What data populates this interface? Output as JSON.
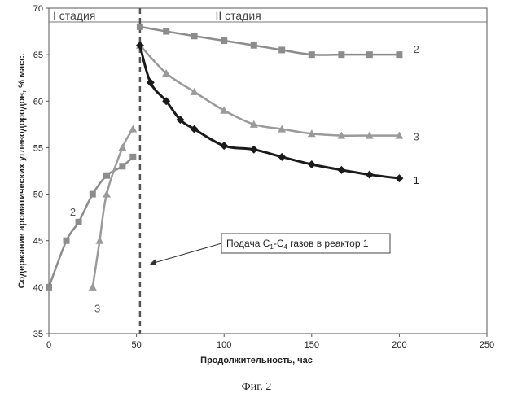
{
  "chart_data": {
    "type": "line",
    "xlabel": "Продолжительность, час",
    "ylabel": "Содержание ароматических углеводородов, % масс.",
    "xlim": [
      0,
      250
    ],
    "ylim": [
      35,
      70
    ],
    "xticks": [
      "0",
      "50",
      "100",
      "150",
      "200",
      "250"
    ],
    "yticks": [
      "35",
      "40",
      "45",
      "50",
      "55",
      "60",
      "65",
      "70"
    ],
    "grid": false,
    "stages": [
      {
        "label": "I стадия",
        "x_start": 0,
        "x_end": 52
      },
      {
        "label": "II стадия",
        "x_start": 52,
        "x_end": 250
      }
    ],
    "stage_boundary_x": 52,
    "annotation": {
      "label": "Подача C1-C4 газов в реактор 1",
      "label_main": "Подача C",
      "sub1": "1",
      "dash": "-C",
      "sub2": "4",
      "label_tail": " газов в реактор 1",
      "arrow_to_x": 58,
      "arrow_to_y": 42.5
    },
    "series": [
      {
        "name": "2",
        "marker": "square",
        "color": "#8c8c8c",
        "segments": [
          {
            "x": [
              0,
              10,
              17,
              25,
              33,
              42,
              48
            ],
            "y": [
              40,
              45,
              47,
              50,
              52,
              53,
              54
            ]
          },
          {
            "x": [
              52,
              67,
              83,
              100,
              117,
              133,
              150,
              167,
              183,
              200
            ],
            "y": [
              68,
              67.5,
              67,
              66.5,
              66,
              65.5,
              65,
              65,
              65,
              65
            ]
          }
        ]
      },
      {
        "name": "3",
        "marker": "triangle",
        "color": "#9a9a9a",
        "segments": [
          {
            "x": [
              25,
              29,
              33,
              42,
              48
            ],
            "y": [
              40,
              45,
              50,
              55,
              57
            ]
          },
          {
            "x": [
              52,
              67,
              83,
              100,
              117,
              133,
              150,
              167,
              183,
              200
            ],
            "y": [
              66,
              63,
              61,
              59,
              57.5,
              57,
              56.5,
              56.3,
              56.3,
              56.3
            ]
          }
        ]
      },
      {
        "name": "1",
        "marker": "diamond",
        "color": "#1a1a1a",
        "segments": [
          {
            "x": [
              52,
              58,
              67,
              75,
              83,
              100,
              117,
              133,
              150,
              167,
              183,
              200
            ],
            "y": [
              66,
              62,
              60,
              58,
              57,
              55.2,
              54.8,
              54,
              53.2,
              52.6,
              52.1,
              51.7
            ]
          }
        ]
      }
    ],
    "series_labels": [
      "2",
      "3",
      "1"
    ]
  },
  "caption": "Фиг. 2"
}
